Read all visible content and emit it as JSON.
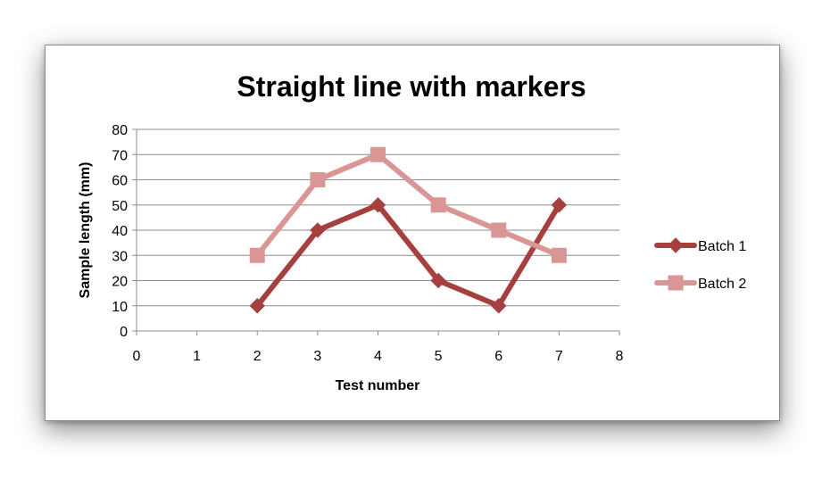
{
  "chart_data": {
    "type": "line",
    "title": "Straight line with markers",
    "xlabel": "Test number",
    "ylabel": "Sample length (mm)",
    "xlim": [
      0,
      8
    ],
    "ylim": [
      0,
      80
    ],
    "xticks": [
      "0",
      "1",
      "2",
      "3",
      "4",
      "5",
      "6",
      "7",
      "8"
    ],
    "yticks": [
      "0",
      "10",
      "20",
      "30",
      "40",
      "50",
      "60",
      "70",
      "80"
    ],
    "grid": "horizontal",
    "legend_position": "right",
    "x": [
      2,
      3,
      4,
      5,
      6,
      7
    ],
    "series": [
      {
        "name": "Batch 1",
        "values": [
          10,
          40,
          50,
          20,
          10,
          50
        ],
        "color": "#a6403f",
        "marker": "diamond"
      },
      {
        "name": "Batch 2",
        "values": [
          30,
          60,
          70,
          50,
          40,
          30
        ],
        "color": "#d99694",
        "marker": "square"
      }
    ]
  }
}
